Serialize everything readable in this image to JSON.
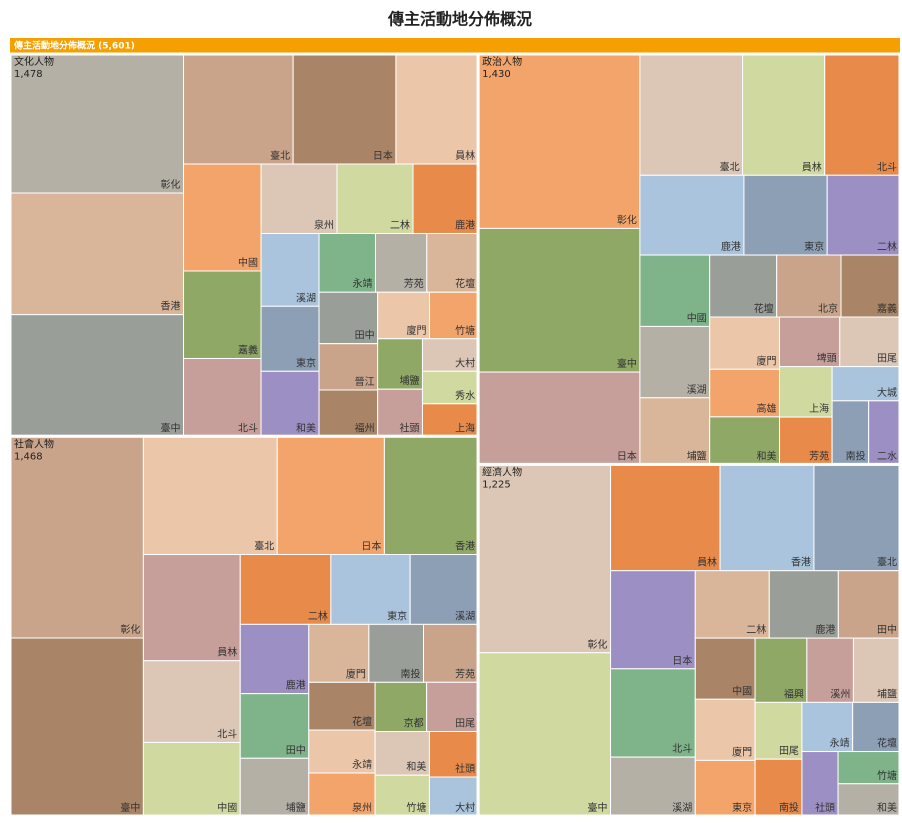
{
  "chart_data": {
    "type": "treemap",
    "title": "傳主活動地分佈概況",
    "root_label": "傳主活動地分佈概況 (5,601)",
    "header_color": "#f5a000",
    "colors": [
      "#b4b0a6",
      "#d9b59a",
      "#9a9e98",
      "#c9a48a",
      "#a98466",
      "#ecc6a8",
      "#f3a46a",
      "#8fa866",
      "#c79f9a",
      "#dcc7b6",
      "#cfd9a0",
      "#e88a4a",
      "#a9c4dc",
      "#8c9fb5",
      "#9c8fc4",
      "#7fb38a"
    ],
    "groups": [
      {
        "name": "文化人物",
        "value": 1478,
        "value_label": "1,478",
        "children": [
          {
            "name": "彰化",
            "value": 160
          },
          {
            "name": "香港",
            "value": 140
          },
          {
            "name": "臺中",
            "value": 140
          },
          {
            "name": "臺北",
            "value": 80
          },
          {
            "name": "日本",
            "value": 75
          },
          {
            "name": "員林",
            "value": 60
          },
          {
            "name": "中國",
            "value": 55
          },
          {
            "name": "嘉義",
            "value": 45
          },
          {
            "name": "北斗",
            "value": 40
          },
          {
            "name": "泉州",
            "value": 35
          },
          {
            "name": "二林",
            "value": 35
          },
          {
            "name": "鹿港",
            "value": 30
          },
          {
            "name": "溪湖",
            "value": 28
          },
          {
            "name": "東京",
            "value": 25
          },
          {
            "name": "和美",
            "value": 25
          },
          {
            "name": "永靖",
            "value": 22
          },
          {
            "name": "芳苑",
            "value": 20
          },
          {
            "name": "花壇",
            "value": 20
          },
          {
            "name": "田中",
            "value": 20
          },
          {
            "name": "晉江",
            "value": 18
          },
          {
            "name": "福州",
            "value": 18
          },
          {
            "name": "廈門",
            "value": 16
          },
          {
            "name": "竹塘",
            "value": 15
          },
          {
            "name": "埔鹽",
            "value": 15
          },
          {
            "name": "社頭",
            "value": 14
          },
          {
            "name": "大村",
            "value": 12
          },
          {
            "name": "秀水",
            "value": 12
          },
          {
            "name": "上海",
            "value": 12
          }
        ]
      },
      {
        "name": "社會人物",
        "value": 1468,
        "value_label": "1,468",
        "children": [
          {
            "name": "彰化",
            "value": 170
          },
          {
            "name": "臺中",
            "value": 150
          },
          {
            "name": "臺北",
            "value": 100
          },
          {
            "name": "日本",
            "value": 80
          },
          {
            "name": "香港",
            "value": 70
          },
          {
            "name": "員林",
            "value": 65
          },
          {
            "name": "北斗",
            "value": 50
          },
          {
            "name": "中國",
            "value": 45
          },
          {
            "name": "二林",
            "value": 40
          },
          {
            "name": "東京",
            "value": 35
          },
          {
            "name": "溪湖",
            "value": 30
          },
          {
            "name": "鹿港",
            "value": 30
          },
          {
            "name": "田中",
            "value": 28
          },
          {
            "name": "埔鹽",
            "value": 25
          },
          {
            "name": "廈門",
            "value": 22
          },
          {
            "name": "南投",
            "value": 20
          },
          {
            "name": "芳苑",
            "value": 20
          },
          {
            "name": "花壇",
            "value": 20
          },
          {
            "name": "永靖",
            "value": 18
          },
          {
            "name": "泉州",
            "value": 18
          },
          {
            "name": "京都",
            "value": 16
          },
          {
            "name": "田尾",
            "value": 16
          },
          {
            "name": "和美",
            "value": 15
          },
          {
            "name": "竹塘",
            "value": 14
          },
          {
            "name": "社頭",
            "value": 14
          },
          {
            "name": "大村",
            "value": 12
          }
        ]
      },
      {
        "name": "政治人物",
        "value": 1430,
        "value_label": "1,430",
        "children": [
          {
            "name": "彰化",
            "value": 170
          },
          {
            "name": "臺中",
            "value": 140
          },
          {
            "name": "日本",
            "value": 90
          },
          {
            "name": "臺北",
            "value": 75
          },
          {
            "name": "員林",
            "value": 60
          },
          {
            "name": "北斗",
            "value": 55
          },
          {
            "name": "鹿港",
            "value": 50
          },
          {
            "name": "東京",
            "value": 40
          },
          {
            "name": "二林",
            "value": 35
          },
          {
            "name": "中國",
            "value": 30
          },
          {
            "name": "溪湖",
            "value": 30
          },
          {
            "name": "埔鹽",
            "value": 28
          },
          {
            "name": "花壇",
            "value": 25
          },
          {
            "name": "北京",
            "value": 24
          },
          {
            "name": "嘉義",
            "value": 22
          },
          {
            "name": "廈門",
            "value": 22
          },
          {
            "name": "高雄",
            "value": 20
          },
          {
            "name": "和美",
            "value": 20
          },
          {
            "name": "埤頭",
            "value": 18
          },
          {
            "name": "田尾",
            "value": 18
          },
          {
            "name": "上海",
            "value": 16
          },
          {
            "name": "芳苑",
            "value": 15
          },
          {
            "name": "大城",
            "value": 14
          },
          {
            "name": "南投",
            "value": 14
          },
          {
            "name": "二水",
            "value": 12
          }
        ]
      },
      {
        "name": "經濟人物",
        "value": 1225,
        "value_label": "1,225",
        "children": [
          {
            "name": "彰化",
            "value": 150
          },
          {
            "name": "臺中",
            "value": 130
          },
          {
            "name": "員林",
            "value": 70
          },
          {
            "name": "香港",
            "value": 60
          },
          {
            "name": "臺北",
            "value": 55
          },
          {
            "name": "日本",
            "value": 50
          },
          {
            "name": "北斗",
            "value": 45
          },
          {
            "name": "溪湖",
            "value": 30
          },
          {
            "name": "二林",
            "value": 30
          },
          {
            "name": "鹿港",
            "value": 28
          },
          {
            "name": "田中",
            "value": 25
          },
          {
            "name": "中國",
            "value": 22
          },
          {
            "name": "廈門",
            "value": 22
          },
          {
            "name": "東京",
            "value": 20
          },
          {
            "name": "福興",
            "value": 20
          },
          {
            "name": "溪州",
            "value": 18
          },
          {
            "name": "埔鹽",
            "value": 18
          },
          {
            "name": "田尾",
            "value": 16
          },
          {
            "name": "南投",
            "value": 16
          },
          {
            "name": "永靖",
            "value": 15
          },
          {
            "name": "花壇",
            "value": 14
          },
          {
            "name": "社頭",
            "value": 14
          },
          {
            "name": "竹塘",
            "value": 12
          },
          {
            "name": "和美",
            "value": 12
          }
        ]
      }
    ]
  }
}
